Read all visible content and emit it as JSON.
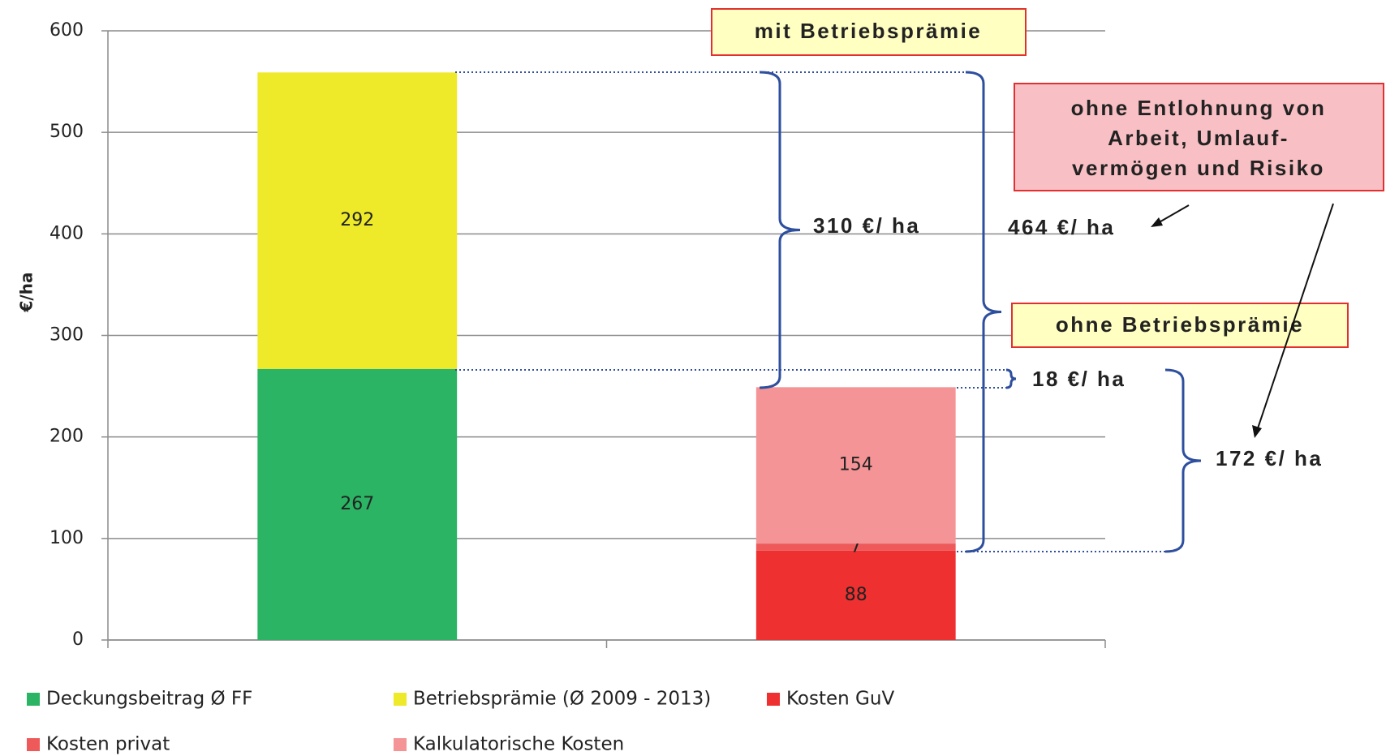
{
  "chart_data": {
    "type": "stacked_bar",
    "y_label": "€/ha",
    "categories": [
      null,
      null
    ],
    "series": [
      {
        "name": "Deckungsbeitrag Ø FF",
        "color": "#2ab463",
        "values": [
          267,
          null
        ]
      },
      {
        "name": "Betriebsprämie (Ø 2009  - 2013)",
        "color": "#eeea2a",
        "values": [
          292,
          null
        ]
      },
      {
        "name": "Kosten GuV",
        "color": "#ee3030",
        "values": [
          null,
          88
        ]
      },
      {
        "name": "Kosten privat",
        "color": "#ee5a5a",
        "values": [
          null,
          7
        ]
      },
      {
        "name": "Kalkulatorische Kosten",
        "color": "#f59496",
        "values": [
          null,
          154
        ]
      }
    ],
    "ylim": [
      0,
      600
    ],
    "yticks": [
      0,
      100,
      200,
      300,
      400,
      500,
      600
    ],
    "grid": true,
    "legend": "bottom",
    "annotations": [
      "mit Betriebsprämie",
      "ohne Entlohnung von",
      "Arbeit, Umlauf-",
      "vermögen und Risiko",
      "ohne Betriebsprämie",
      "310 €/ ha",
      "464 €/ ha",
      "18 €/ ha",
      "172 €/ ha"
    ]
  }
}
